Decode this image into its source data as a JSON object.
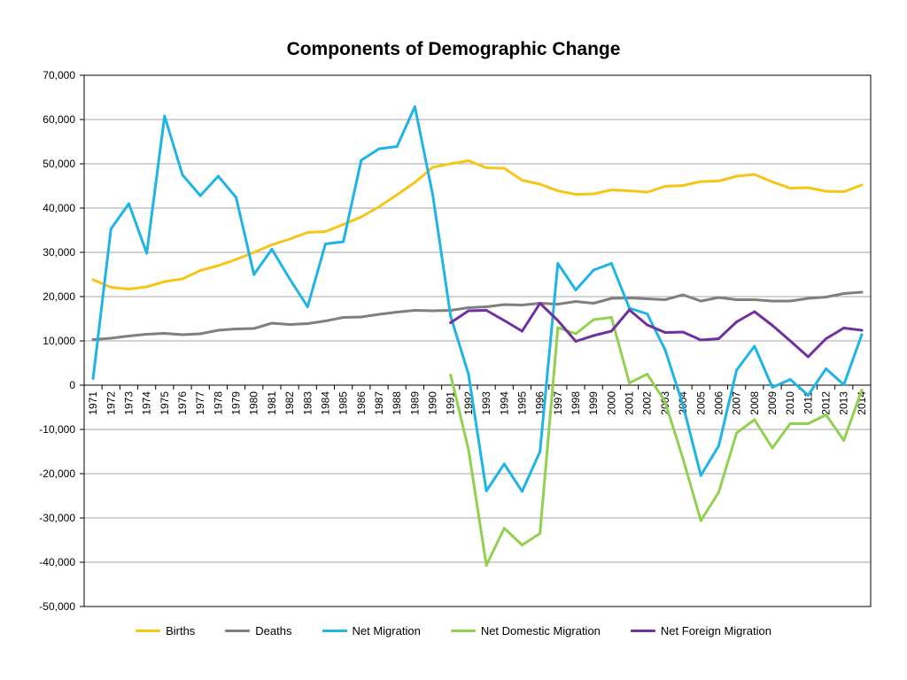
{
  "chart_data": {
    "type": "line",
    "title": "Components of Demographic Change",
    "xlabel": "",
    "ylabel": "",
    "ylim": [
      -50000,
      70000
    ],
    "yticks": [
      -50000,
      -40000,
      -30000,
      -20000,
      -10000,
      0,
      10000,
      20000,
      30000,
      40000,
      50000,
      60000,
      70000
    ],
    "ytick_labels": [
      "-50,000",
      "-40,000",
      "-30,000",
      "-20,000",
      "-10,000",
      "0",
      "10,000",
      "20,000",
      "30,000",
      "40,000",
      "50,000",
      "60,000",
      "70,000"
    ],
    "grid": true,
    "legend_position": "bottom",
    "categories": [
      "1971",
      "1972",
      "1973",
      "1974",
      "1975",
      "1976",
      "1977",
      "1978",
      "1979",
      "1980",
      "1981",
      "1982",
      "1983",
      "1984",
      "1985",
      "1986",
      "1987",
      "1988",
      "1989",
      "1990",
      "1991",
      "1992",
      "1993",
      "1994",
      "1995",
      "1996",
      "1997",
      "1998",
      "1999",
      "2000",
      "2001",
      "2002",
      "2003",
      "2004",
      "2005",
      "2006",
      "2007",
      "2008",
      "2009",
      "2010",
      "2011",
      "2012",
      "2013",
      "2014"
    ],
    "series": [
      {
        "name": "Births",
        "color": "#F5C518",
        "values": [
          23800,
          22100,
          21700,
          22200,
          23400,
          24000,
          25900,
          27000,
          28400,
          30000,
          31700,
          33000,
          34500,
          34700,
          36300,
          38000,
          40300,
          43000,
          45800,
          49200,
          50000,
          50700,
          49100,
          49000,
          46300,
          45400,
          43900,
          43100,
          43200,
          44100,
          43900,
          43600,
          44900,
          45100,
          46000,
          46100,
          47200,
          47600,
          45900,
          44500,
          44600,
          43800,
          43700,
          45200
        ]
      },
      {
        "name": "Deaths",
        "color": "#7F7F7F",
        "values": [
          10300,
          10600,
          11100,
          11500,
          11700,
          11400,
          11600,
          12400,
          12700,
          12800,
          14000,
          13700,
          13900,
          14500,
          15300,
          15400,
          16000,
          16500,
          16900,
          16800,
          16900,
          17500,
          17700,
          18200,
          18100,
          18500,
          18300,
          18900,
          18500,
          19600,
          19700,
          19500,
          19300,
          20400,
          19000,
          19800,
          19300,
          19300,
          19000,
          19000,
          19600,
          19900,
          20700,
          21000
        ]
      },
      {
        "name": "Net Migration",
        "color": "#1EB4E6",
        "values": [
          1500,
          35300,
          41000,
          29800,
          60800,
          47500,
          42800,
          47200,
          42400,
          25000,
          30700,
          24000,
          17700,
          31900,
          32400,
          50800,
          53400,
          53900,
          62900,
          43000,
          15600,
          2500,
          -23900,
          -17800,
          -24000,
          -15000,
          27500,
          21500,
          26000,
          27500,
          17400,
          16100,
          8000,
          -4500,
          -20400,
          -13700,
          3400,
          8800,
          -500,
          1300,
          -2300,
          3700,
          100,
          11400
        ]
      },
      {
        "name": "Net Domestic Migration",
        "color": "#92D050",
        "values": [
          null,
          null,
          null,
          null,
          null,
          null,
          null,
          null,
          null,
          null,
          null,
          null,
          null,
          null,
          null,
          null,
          null,
          null,
          null,
          null,
          2300,
          -14500,
          -40700,
          -32300,
          -36100,
          -33500,
          13000,
          11600,
          14800,
          15300,
          500,
          2500,
          -3800,
          -16600,
          -30600,
          -24200,
          -10800,
          -7800,
          -14200,
          -8700,
          -8700,
          -6700,
          -12500,
          -1100
        ]
      },
      {
        "name": "Net Foreign Migration",
        "color": "#7030A0",
        "values": [
          null,
          null,
          null,
          null,
          null,
          null,
          null,
          null,
          null,
          null,
          null,
          null,
          null,
          null,
          null,
          null,
          null,
          null,
          null,
          null,
          14100,
          16800,
          16900,
          14600,
          12200,
          18500,
          14600,
          9900,
          11200,
          12200,
          17000,
          13600,
          11900,
          12000,
          10200,
          10500,
          14300,
          16600,
          13500,
          10000,
          6400,
          10500,
          12900,
          12400
        ]
      }
    ]
  }
}
